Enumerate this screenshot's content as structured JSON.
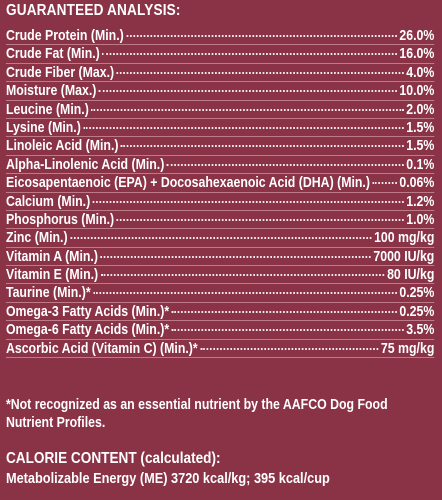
{
  "title": "GUARANTEED ANALYSIS:",
  "rows": [
    {
      "name": "Crude Protein (Min.)",
      "value": "26.0%"
    },
    {
      "name": "Crude Fat (Min.)",
      "value": "16.0%"
    },
    {
      "name": "Crude Fiber (Max.)",
      "value": "4.0%"
    },
    {
      "name": "Moisture (Max.)",
      "value": "10.0%"
    },
    {
      "name": "Leucine (Min.)",
      "value": "2.0%"
    },
    {
      "name": "Lysine (Min.)",
      "value": "1.5%"
    },
    {
      "name": "Linoleic Acid (Min.)",
      "value": "1.5%"
    },
    {
      "name": "Alpha-Linolenic Acid (Min.)",
      "value": "0.1%"
    },
    {
      "name": "Eicosapentaenoic (EPA) + Docosahexaenoic Acid (DHA) (Min.)",
      "value": "0.06%"
    },
    {
      "name": "Calcium (Min.)",
      "value": "1.2%"
    },
    {
      "name": "Phosphorus (Min.)",
      "value": "1.0%"
    },
    {
      "name": "Zinc (Min.)",
      "value": "100 mg/kg"
    },
    {
      "name": "Vitamin A (Min.)",
      "value": "7000 IU/kg"
    },
    {
      "name": "Vitamin E (Min.)",
      "value": "80 IU/kg"
    },
    {
      "name": "Taurine (Min.)*",
      "value": "0.25%"
    },
    {
      "name": "Omega-3 Fatty Acids (Min.)*",
      "value": "0.25%"
    },
    {
      "name": "Omega-6 Fatty Acids (Min.)*",
      "value": "3.5%"
    },
    {
      "name": "Ascorbic Acid (Vitamin C) (Min.)*",
      "value": "75 mg/kg"
    }
  ],
  "footnote": "*Not recognized as an essential nutrient by the AAFCO Dog Food Nutrient Profiles.",
  "calorie": {
    "title": "CALORIE CONTENT (calculated):",
    "line": "Metabolizable Energy (ME) 3720 kcal/kg;  395 kcal/cup"
  }
}
